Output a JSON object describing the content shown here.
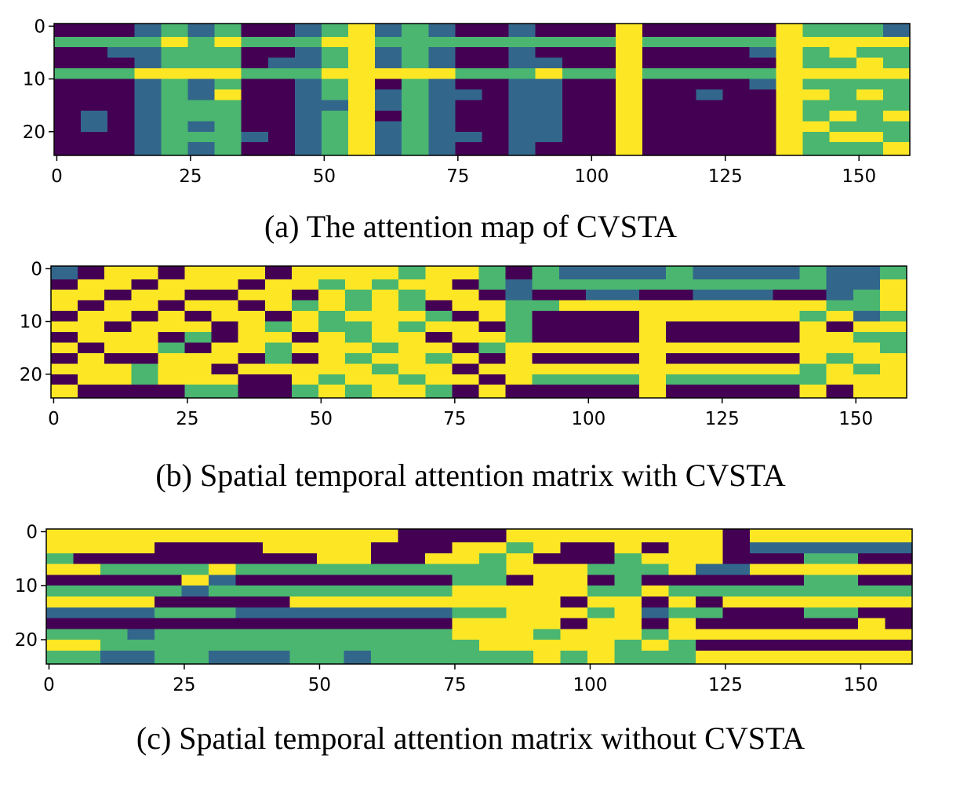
{
  "chart_data": [
    {
      "type": "heatmap",
      "caption": "(a) The attention map of CVSTA",
      "colormap": "viridis",
      "zlim": [
        0,
        3
      ],
      "xlim": [
        -0.5,
        159.5
      ],
      "ylim": [
        24.5,
        -0.5
      ],
      "xticks": [
        0,
        25,
        50,
        75,
        100,
        125,
        150
      ],
      "yticks": [
        0,
        10,
        20
      ],
      "x_edges": [
        -0.5,
        4.5,
        9.5,
        14.5,
        19.5,
        24.5,
        29.5,
        34.5,
        39.5,
        44.5,
        49.5,
        54.5,
        59.5,
        64.5,
        69.5,
        74.5,
        79.5,
        84.5,
        89.5,
        94.5,
        99.5,
        104.5,
        109.5,
        114.5,
        119.5,
        124.5,
        129.5,
        134.5,
        139.5,
        144.5,
        149.5,
        154.5,
        159.5
      ],
      "y_edges": [
        -0.5,
        2,
        4,
        6,
        8,
        10,
        12,
        14,
        16,
        18,
        20,
        22,
        24.5
      ],
      "values": [
        [
          0,
          0,
          0,
          1,
          2,
          1,
          2,
          0,
          0,
          1,
          2,
          3,
          1,
          2,
          1,
          0,
          0,
          1,
          0,
          0,
          0,
          3,
          0,
          0,
          0,
          0,
          0,
          3,
          2,
          2,
          2,
          1
        ],
        [
          2,
          2,
          2,
          2,
          3,
          2,
          3,
          2,
          2,
          2,
          3,
          3,
          2,
          2,
          2,
          2,
          2,
          2,
          2,
          2,
          2,
          3,
          2,
          2,
          2,
          2,
          2,
          3,
          3,
          3,
          3,
          3
        ],
        [
          0,
          0,
          1,
          1,
          2,
          2,
          2,
          0,
          0,
          1,
          2,
          3,
          1,
          2,
          1,
          0,
          0,
          1,
          0,
          0,
          0,
          3,
          0,
          0,
          0,
          0,
          1,
          3,
          2,
          3,
          2,
          2
        ],
        [
          0,
          0,
          0,
          1,
          2,
          2,
          2,
          0,
          1,
          1,
          2,
          3,
          1,
          2,
          1,
          0,
          0,
          1,
          1,
          0,
          0,
          3,
          0,
          0,
          0,
          0,
          0,
          3,
          2,
          2,
          3,
          2
        ],
        [
          2,
          2,
          2,
          3,
          3,
          3,
          3,
          2,
          2,
          2,
          3,
          3,
          3,
          3,
          3,
          2,
          2,
          2,
          3,
          2,
          2,
          3,
          2,
          2,
          2,
          2,
          2,
          3,
          3,
          3,
          3,
          3
        ],
        [
          0,
          0,
          0,
          1,
          2,
          1,
          2,
          0,
          0,
          1,
          2,
          3,
          0,
          2,
          1,
          0,
          0,
          1,
          1,
          0,
          0,
          3,
          0,
          0,
          0,
          0,
          1,
          3,
          2,
          2,
          2,
          2
        ],
        [
          0,
          0,
          0,
          1,
          2,
          1,
          3,
          0,
          0,
          1,
          2,
          3,
          1,
          2,
          1,
          1,
          0,
          1,
          1,
          0,
          0,
          3,
          0,
          0,
          1,
          0,
          0,
          3,
          3,
          2,
          3,
          2
        ],
        [
          0,
          0,
          0,
          1,
          2,
          2,
          2,
          0,
          0,
          1,
          1,
          3,
          1,
          2,
          1,
          0,
          0,
          1,
          1,
          0,
          0,
          3,
          0,
          0,
          0,
          0,
          0,
          3,
          2,
          2,
          2,
          2
        ],
        [
          0,
          1,
          0,
          1,
          2,
          2,
          2,
          0,
          0,
          1,
          2,
          3,
          0,
          2,
          1,
          0,
          0,
          1,
          1,
          0,
          0,
          3,
          0,
          0,
          0,
          0,
          0,
          3,
          2,
          3,
          2,
          3
        ],
        [
          0,
          1,
          0,
          1,
          2,
          1,
          2,
          0,
          0,
          1,
          2,
          3,
          1,
          2,
          1,
          0,
          0,
          1,
          1,
          0,
          0,
          3,
          0,
          0,
          0,
          0,
          0,
          3,
          3,
          2,
          2,
          2
        ],
        [
          0,
          0,
          0,
          1,
          2,
          2,
          2,
          1,
          0,
          1,
          2,
          3,
          1,
          2,
          1,
          1,
          0,
          1,
          1,
          0,
          0,
          3,
          0,
          0,
          0,
          0,
          0,
          3,
          2,
          3,
          3,
          2
        ],
        [
          0,
          0,
          0,
          1,
          2,
          1,
          2,
          0,
          0,
          1,
          2,
          3,
          1,
          2,
          1,
          0,
          0,
          1,
          0,
          0,
          0,
          3,
          0,
          0,
          0,
          0,
          0,
          3,
          2,
          2,
          2,
          3
        ]
      ]
    },
    {
      "type": "heatmap",
      "caption": "(b) Spatial temporal attention matrix with CVSTA",
      "colormap": "viridis",
      "zlim": [
        0,
        3
      ],
      "xlim": [
        -0.5,
        159.5
      ],
      "ylim": [
        24.5,
        -0.5
      ],
      "xticks": [
        0,
        25,
        50,
        75,
        100,
        125,
        150
      ],
      "yticks": [
        0,
        10,
        20
      ],
      "x_edges": [
        -0.5,
        4.5,
        9.5,
        14.5,
        19.5,
        24.5,
        29.5,
        34.5,
        39.5,
        44.5,
        49.5,
        54.5,
        59.5,
        64.5,
        69.5,
        74.5,
        79.5,
        84.5,
        89.5,
        94.5,
        99.5,
        104.5,
        109.5,
        114.5,
        119.5,
        124.5,
        129.5,
        134.5,
        139.5,
        144.5,
        149.5,
        154.5,
        159.5
      ],
      "y_edges": [
        -0.5,
        2,
        4,
        6,
        8,
        10,
        12,
        14,
        16,
        18,
        20,
        22,
        24.5
      ],
      "values": [
        [
          1,
          0,
          3,
          3,
          0,
          3,
          3,
          3,
          0,
          3,
          3,
          3,
          3,
          2,
          3,
          3,
          2,
          0,
          2,
          1,
          1,
          1,
          1,
          2,
          1,
          1,
          1,
          1,
          2,
          1,
          1,
          2
        ],
        [
          0,
          3,
          3,
          0,
          3,
          3,
          3,
          0,
          3,
          3,
          2,
          3,
          2,
          3,
          3,
          0,
          2,
          1,
          2,
          2,
          2,
          2,
          2,
          2,
          2,
          2,
          2,
          2,
          2,
          1,
          1,
          3
        ],
        [
          3,
          3,
          0,
          3,
          3,
          0,
          0,
          3,
          3,
          0,
          3,
          2,
          3,
          2,
          3,
          3,
          0,
          1,
          0,
          0,
          1,
          1,
          0,
          0,
          1,
          1,
          1,
          0,
          0,
          1,
          2,
          3
        ],
        [
          3,
          0,
          3,
          3,
          0,
          3,
          3,
          0,
          3,
          2,
          3,
          2,
          3,
          2,
          0,
          3,
          3,
          2,
          2,
          3,
          3,
          3,
          3,
          3,
          3,
          3,
          3,
          3,
          3,
          2,
          2,
          3
        ],
        [
          0,
          3,
          3,
          0,
          3,
          0,
          3,
          3,
          0,
          3,
          2,
          3,
          3,
          3,
          2,
          0,
          3,
          2,
          0,
          0,
          0,
          0,
          3,
          3,
          3,
          3,
          3,
          3,
          2,
          3,
          1,
          2
        ],
        [
          3,
          3,
          0,
          3,
          3,
          3,
          0,
          3,
          2,
          3,
          2,
          2,
          3,
          2,
          3,
          3,
          0,
          2,
          0,
          0,
          0,
          0,
          3,
          0,
          0,
          0,
          0,
          0,
          3,
          0,
          3,
          3
        ],
        [
          0,
          3,
          3,
          3,
          0,
          2,
          0,
          3,
          3,
          0,
          3,
          2,
          3,
          3,
          0,
          3,
          3,
          2,
          0,
          0,
          0,
          0,
          3,
          0,
          0,
          0,
          0,
          0,
          3,
          3,
          2,
          2
        ],
        [
          3,
          0,
          3,
          3,
          2,
          0,
          3,
          3,
          2,
          3,
          3,
          3,
          2,
          3,
          3,
          0,
          2,
          3,
          3,
          3,
          3,
          3,
          3,
          3,
          3,
          3,
          3,
          3,
          3,
          3,
          3,
          2
        ],
        [
          0,
          3,
          0,
          0,
          3,
          3,
          3,
          0,
          2,
          0,
          3,
          2,
          3,
          3,
          2,
          3,
          0,
          3,
          0,
          0,
          0,
          0,
          3,
          0,
          0,
          0,
          0,
          0,
          3,
          2,
          3,
          3
        ],
        [
          3,
          3,
          3,
          2,
          3,
          3,
          0,
          3,
          3,
          3,
          3,
          3,
          2,
          3,
          3,
          0,
          3,
          3,
          3,
          3,
          3,
          3,
          3,
          3,
          3,
          3,
          3,
          3,
          2,
          3,
          2,
          3
        ],
        [
          0,
          3,
          3,
          2,
          3,
          3,
          3,
          0,
          0,
          3,
          2,
          3,
          3,
          2,
          3,
          3,
          0,
          3,
          2,
          2,
          2,
          2,
          3,
          2,
          2,
          2,
          2,
          2,
          2,
          3,
          3,
          3
        ],
        [
          3,
          0,
          0,
          0,
          0,
          2,
          2,
          0,
          0,
          2,
          3,
          2,
          3,
          3,
          2,
          0,
          3,
          0,
          0,
          0,
          0,
          0,
          3,
          0,
          0,
          0,
          0,
          0,
          3,
          0,
          3,
          3
        ]
      ]
    },
    {
      "type": "heatmap",
      "caption": "(c) Spatial temporal attention matrix without CVSTA",
      "colormap": "viridis",
      "zlim": [
        0,
        3
      ],
      "xlim": [
        -0.5,
        159.5
      ],
      "ylim": [
        24.5,
        -0.5
      ],
      "xticks": [
        0,
        25,
        50,
        75,
        100,
        125,
        150
      ],
      "yticks": [
        0,
        10,
        20
      ],
      "x_edges": [
        -0.5,
        4.5,
        9.5,
        14.5,
        19.5,
        24.5,
        29.5,
        34.5,
        39.5,
        44.5,
        49.5,
        54.5,
        59.5,
        64.5,
        69.5,
        74.5,
        79.5,
        84.5,
        89.5,
        94.5,
        99.5,
        104.5,
        109.5,
        114.5,
        119.5,
        124.5,
        129.5,
        134.5,
        139.5,
        144.5,
        149.5,
        154.5,
        159.5
      ],
      "y_edges": [
        -0.5,
        2,
        4,
        6,
        8,
        10,
        12,
        14,
        16,
        18,
        20,
        22,
        24.5
      ],
      "values": [
        [
          3,
          3,
          3,
          3,
          3,
          3,
          3,
          3,
          3,
          3,
          3,
          3,
          3,
          0,
          0,
          0,
          0,
          3,
          3,
          3,
          3,
          3,
          3,
          3,
          3,
          0,
          3,
          3,
          3,
          3,
          3,
          3
        ],
        [
          3,
          3,
          3,
          3,
          0,
          0,
          0,
          0,
          3,
          3,
          3,
          3,
          0,
          0,
          0,
          3,
          3,
          2,
          3,
          0,
          0,
          3,
          0,
          3,
          3,
          0,
          1,
          1,
          1,
          1,
          1,
          1
        ],
        [
          2,
          0,
          0,
          0,
          0,
          0,
          0,
          0,
          0,
          0,
          3,
          3,
          0,
          0,
          3,
          3,
          2,
          3,
          0,
          0,
          0,
          2,
          3,
          3,
          3,
          0,
          0,
          0,
          2,
          2,
          0,
          0
        ],
        [
          3,
          3,
          2,
          2,
          2,
          2,
          3,
          2,
          2,
          2,
          2,
          2,
          2,
          2,
          2,
          2,
          2,
          3,
          3,
          3,
          2,
          2,
          2,
          3,
          1,
          1,
          3,
          3,
          3,
          3,
          3,
          3
        ],
        [
          0,
          0,
          0,
          0,
          0,
          3,
          1,
          0,
          0,
          0,
          0,
          0,
          0,
          0,
          0,
          2,
          2,
          0,
          3,
          3,
          0,
          2,
          0,
          0,
          0,
          0,
          0,
          0,
          2,
          2,
          0,
          0
        ],
        [
          2,
          2,
          2,
          2,
          2,
          1,
          2,
          2,
          2,
          2,
          2,
          2,
          2,
          2,
          2,
          3,
          3,
          3,
          3,
          3,
          2,
          2,
          3,
          2,
          2,
          2,
          2,
          2,
          2,
          2,
          2,
          2
        ],
        [
          3,
          3,
          3,
          3,
          0,
          0,
          0,
          0,
          0,
          3,
          3,
          3,
          3,
          3,
          3,
          3,
          3,
          3,
          3,
          0,
          3,
          3,
          0,
          3,
          0,
          3,
          3,
          3,
          3,
          3,
          3,
          3
        ],
        [
          1,
          1,
          1,
          1,
          2,
          2,
          2,
          1,
          1,
          1,
          1,
          1,
          1,
          1,
          1,
          2,
          2,
          3,
          3,
          3,
          2,
          3,
          1,
          2,
          2,
          0,
          0,
          0,
          2,
          2,
          0,
          0
        ],
        [
          0,
          0,
          0,
          0,
          0,
          0,
          0,
          0,
          0,
          0,
          0,
          0,
          0,
          0,
          0,
          3,
          3,
          3,
          3,
          0,
          3,
          3,
          0,
          3,
          0,
          0,
          0,
          0,
          0,
          0,
          3,
          0
        ],
        [
          2,
          2,
          2,
          1,
          2,
          2,
          2,
          2,
          2,
          2,
          2,
          2,
          2,
          2,
          2,
          3,
          3,
          3,
          2,
          3,
          3,
          3,
          2,
          3,
          3,
          3,
          3,
          3,
          3,
          3,
          3,
          3
        ],
        [
          3,
          3,
          2,
          2,
          2,
          2,
          2,
          2,
          2,
          2,
          2,
          2,
          2,
          2,
          2,
          2,
          3,
          3,
          3,
          3,
          3,
          2,
          3,
          2,
          0,
          0,
          0,
          0,
          0,
          0,
          0,
          0
        ],
        [
          2,
          2,
          1,
          1,
          2,
          2,
          1,
          1,
          1,
          2,
          2,
          1,
          2,
          2,
          2,
          2,
          2,
          2,
          3,
          2,
          3,
          2,
          2,
          2,
          3,
          3,
          3,
          3,
          3,
          3,
          3,
          3
        ]
      ]
    }
  ]
}
